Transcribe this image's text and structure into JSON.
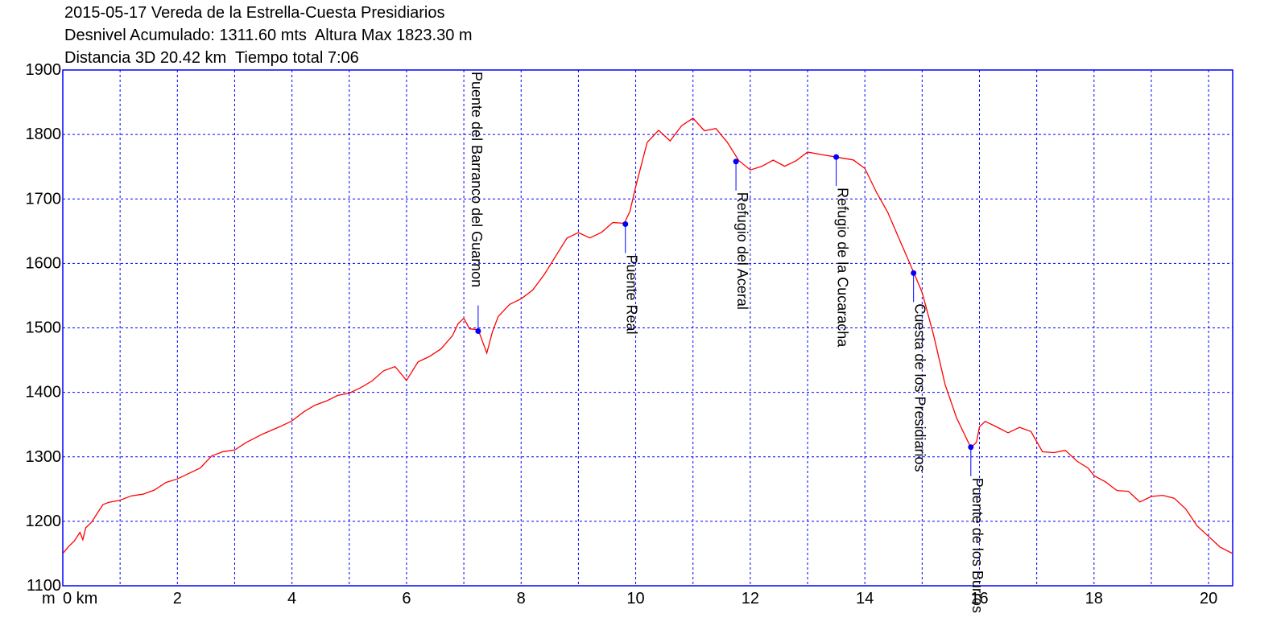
{
  "title": {
    "line1": "2015-05-17 Vereda de la Estrella-Cuesta Presidiarios",
    "line2": "Desnivel Acumulado: 1311.60 mts  Altura Max 1823.30 m",
    "line3": "Distancia 3D 20.42 km  Tiempo total 7:06"
  },
  "chart_data": {
    "type": "line",
    "title": "2015-05-17 Vereda de la Estrella-Cuesta Presidiarios",
    "xlabel": "km",
    "ylabel": "m",
    "xlim": [
      0,
      20.42
    ],
    "ylim": [
      1100,
      1900
    ],
    "xticks": [
      0,
      2,
      4,
      6,
      8,
      10,
      12,
      14,
      16,
      18,
      20
    ],
    "xtick_labels": [
      "0 km",
      "2",
      "4",
      "6",
      "8",
      "10",
      "12",
      "14",
      "16",
      "18",
      "20"
    ],
    "yticks": [
      1100,
      1200,
      1300,
      1400,
      1500,
      1600,
      1700,
      1800,
      1900
    ],
    "ytick_labels": [
      "1100",
      "1200",
      "1300",
      "1400",
      "1500",
      "1600",
      "1700",
      "1800",
      "1900"
    ],
    "y_unit_label": "m",
    "grid": true,
    "colors": {
      "line": "#ff0000",
      "frame": "#0000ff",
      "grid": "#0000ff",
      "waypoint": "#0000ff"
    },
    "series": [
      {
        "x": [
          0,
          0.1,
          0.2,
          0.3,
          0.35,
          0.4,
          0.5,
          0.6,
          0.7,
          0.8,
          1.0,
          1.2,
          1.4,
          1.6,
          1.8,
          2.0,
          2.2,
          2.4,
          2.6,
          2.8,
          3.0,
          3.2,
          3.5,
          3.8,
          4.0,
          4.2,
          4.4,
          4.6,
          4.8,
          5.0,
          5.2,
          5.4,
          5.6,
          5.8,
          6.0,
          6.2,
          6.4,
          6.6,
          6.8,
          6.9,
          7.0,
          7.1,
          7.25,
          7.4,
          7.5,
          7.6,
          7.8,
          8.0,
          8.2,
          8.4,
          8.6,
          8.8,
          9.0,
          9.2,
          9.4,
          9.6,
          9.8,
          9.9,
          10.0,
          10.2,
          10.4,
          10.6,
          10.8,
          11.0,
          11.2,
          11.4,
          11.6,
          11.8,
          12.0,
          12.2,
          12.4,
          12.6,
          12.8,
          13.0,
          13.2,
          13.5,
          13.8,
          14.0,
          14.2,
          14.4,
          14.6,
          14.85,
          15.0,
          15.2,
          15.4,
          15.6,
          15.85,
          15.95,
          16.0,
          16.1,
          16.3,
          16.5,
          16.7,
          16.9,
          17.1,
          17.3,
          17.5,
          17.7,
          17.9,
          18.0,
          18.2,
          18.4,
          18.6,
          18.8,
          19.0,
          19.2,
          19.4,
          19.6,
          19.8,
          20.0,
          20.2,
          20.42
        ],
        "y": [
          1150,
          1160,
          1170,
          1185,
          1170,
          1190,
          1200,
          1210,
          1225,
          1230,
          1235,
          1238,
          1242,
          1250,
          1258,
          1265,
          1275,
          1285,
          1300,
          1308,
          1312,
          1320,
          1335,
          1348,
          1358,
          1368,
          1380,
          1388,
          1393,
          1398,
          1408,
          1420,
          1432,
          1440,
          1420,
          1445,
          1455,
          1468,
          1490,
          1505,
          1515,
          1500,
          1495,
          1460,
          1495,
          1520,
          1535,
          1545,
          1560,
          1580,
          1610,
          1640,
          1650,
          1638,
          1648,
          1665,
          1660,
          1680,
          1720,
          1790,
          1805,
          1790,
          1815,
          1823,
          1805,
          1810,
          1790,
          1758,
          1745,
          1752,
          1758,
          1750,
          1760,
          1775,
          1768,
          1765,
          1762,
          1745,
          1710,
          1680,
          1640,
          1585,
          1555,
          1490,
          1410,
          1360,
          1315,
          1325,
          1345,
          1355,
          1348,
          1335,
          1345,
          1340,
          1310,
          1305,
          1310,
          1295,
          1280,
          1270,
          1262,
          1250,
          1245,
          1230,
          1240,
          1238,
          1235,
          1220,
          1195,
          1175,
          1160,
          1150
        ]
      }
    ],
    "waypoints": [
      {
        "name": "Puente del Barranco del Guarnon",
        "x": 7.25,
        "y": 1495
      },
      {
        "name": "Puente Real",
        "x": 9.82,
        "y": 1661
      },
      {
        "name": "Refugio del Aceral",
        "x": 11.75,
        "y": 1758
      },
      {
        "name": "Refugio de la Cucaracha",
        "x": 13.5,
        "y": 1765
      },
      {
        "name": "Cuesta de los Presidiarios",
        "x": 14.85,
        "y": 1585
      },
      {
        "name": "Puente de los Burros",
        "x": 15.85,
        "y": 1315
      }
    ]
  }
}
